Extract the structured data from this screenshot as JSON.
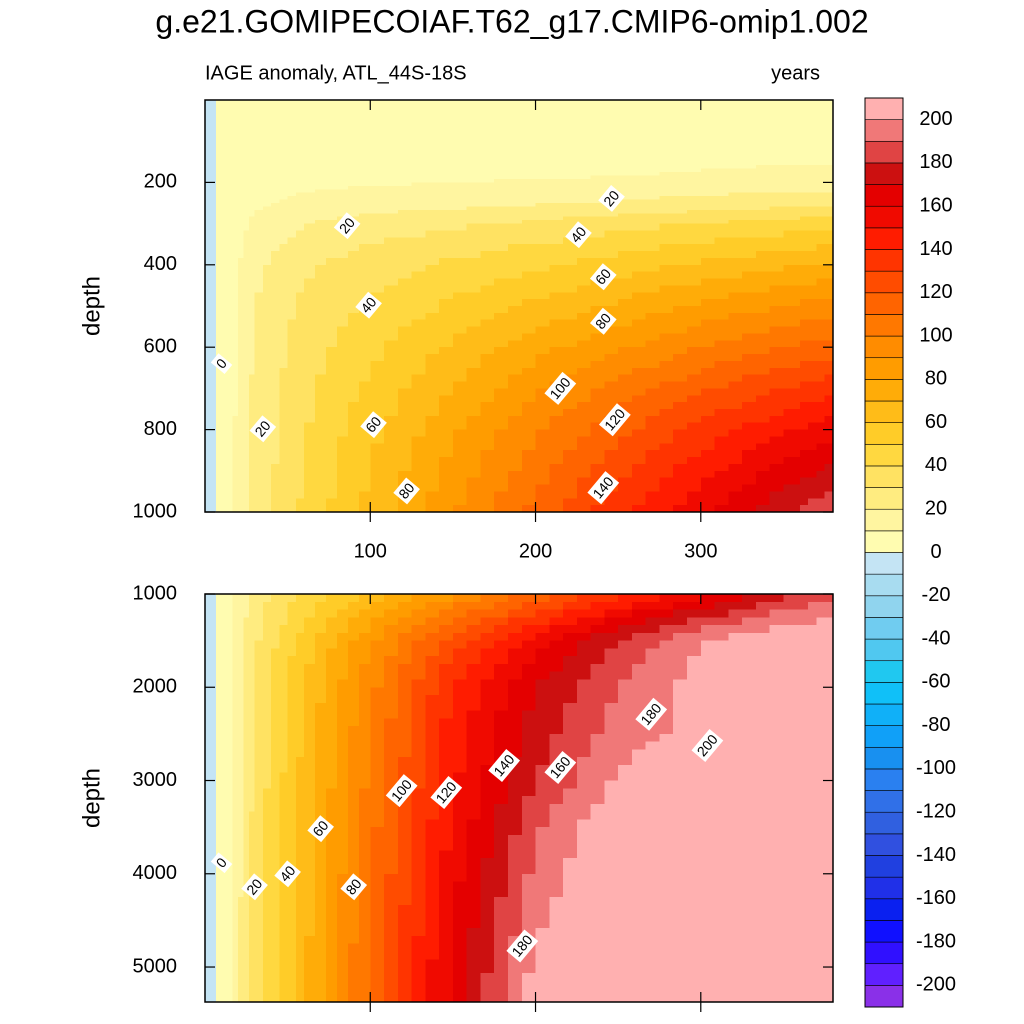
{
  "title": "g.e21.GOMIPECOIAF.T62_g17.CMIP6-omip1.002",
  "colorbar": {
    "levels": [
      -210,
      -200,
      -190,
      -180,
      -170,
      -160,
      -150,
      -140,
      -130,
      -120,
      -110,
      -100,
      -90,
      -80,
      -70,
      -60,
      -50,
      -40,
      -30,
      -20,
      -10,
      0,
      10,
      20,
      30,
      40,
      50,
      60,
      70,
      80,
      90,
      100,
      110,
      120,
      130,
      140,
      150,
      160,
      170,
      180,
      190,
      200,
      210
    ],
    "colors": [
      "#8a30e8",
      "#6020ff",
      "#3010ff",
      "#1010ff",
      "#0a20f0",
      "#2030e8",
      "#2040e0",
      "#3050e0",
      "#3060e0",
      "#3070e8",
      "#2a80f0",
      "#1890f0",
      "#10a0f8",
      "#10b0f8",
      "#10c0f8",
      "#20c8f0",
      "#50c8f0",
      "#70ccf0",
      "#90d4ee",
      "#a8dcf0",
      "#c4e4f4",
      "#fffcb0",
      "#fff5a0",
      "#ffec80",
      "#ffe262",
      "#ffd840",
      "#ffcc28",
      "#ffbc18",
      "#ffac08",
      "#ff9c00",
      "#ff8c00",
      "#ff7800",
      "#ff6400",
      "#ff4c00",
      "#ff3400",
      "#ff1c00",
      "#f00a00",
      "#e40000",
      "#cc1010",
      "#e04444",
      "#f07878",
      "#ffb0b0"
    ],
    "ticks": [
      -200,
      -180,
      -160,
      -140,
      -120,
      -100,
      -80,
      -60,
      -40,
      -20,
      0,
      20,
      40,
      60,
      80,
      100,
      120,
      140,
      160,
      180,
      200
    ]
  },
  "chart_data": [
    {
      "type": "contour",
      "subtitle": "IAGE anomaly, ATL_44S-18S",
      "units": "years",
      "y_label": "depth",
      "xlim": [
        0,
        380
      ],
      "ylim": [
        1000,
        0
      ],
      "xticks": [
        100,
        200,
        300
      ],
      "yticks": [
        200,
        400,
        600,
        800,
        1000
      ],
      "show_xtick_labels": true,
      "x": [
        0,
        10,
        30,
        60,
        100,
        150,
        200,
        250,
        300,
        350,
        380
      ],
      "y": [
        0,
        150,
        200,
        250,
        300,
        400,
        500,
        600,
        700,
        800,
        900,
        1000
      ],
      "z": [
        [
          -3,
          1,
          5,
          5,
          5,
          5,
          5,
          5,
          5,
          5,
          5
        ],
        [
          -3,
          1,
          5,
          5,
          5,
          5,
          5,
          5,
          8,
          9,
          9
        ],
        [
          -3,
          1,
          6,
          8,
          9,
          10,
          11,
          12,
          13,
          14,
          14
        ],
        [
          -3,
          1,
          8,
          12,
          15,
          17,
          19,
          21,
          24,
          26,
          27
        ],
        [
          -3,
          1,
          12,
          20,
          25,
          28,
          32,
          36,
          40,
          44,
          46
        ],
        [
          -3,
          1,
          17,
          28,
          35,
          42,
          48,
          55,
          62,
          68,
          72
        ],
        [
          -3,
          1,
          20,
          32,
          41,
          52,
          62,
          72,
          82,
          90,
          95
        ],
        [
          -3,
          1,
          21,
          35,
          47,
          62,
          76,
          88,
          100,
          110,
          115
        ],
        [
          -3,
          1,
          22,
          37,
          52,
          70,
          88,
          103,
          118,
          130,
          136
        ],
        [
          -3,
          1,
          23,
          39,
          57,
          78,
          98,
          117,
          133,
          148,
          156
        ],
        [
          -3,
          1,
          23,
          40,
          60,
          84,
          106,
          127,
          146,
          164,
          172
        ],
        [
          -3,
          1,
          24,
          42,
          63,
          89,
          113,
          137,
          158,
          178,
          188
        ]
      ],
      "contour_labels": [
        {
          "value": 0,
          "x": 10,
          "y": 640
        },
        {
          "value": 20,
          "x": 35,
          "y": 798
        },
        {
          "value": 20,
          "x": 86,
          "y": 305
        },
        {
          "value": 40,
          "x": 99,
          "y": 498
        },
        {
          "value": 60,
          "x": 102,
          "y": 788
        },
        {
          "value": 80,
          "x": 122,
          "y": 949
        },
        {
          "value": 20,
          "x": 246,
          "y": 239
        },
        {
          "value": 40,
          "x": 226,
          "y": 327
        },
        {
          "value": 60,
          "x": 241,
          "y": 429
        },
        {
          "value": 80,
          "x": 241,
          "y": 537
        },
        {
          "value": 100,
          "x": 215,
          "y": 700
        },
        {
          "value": 120,
          "x": 248,
          "y": 776
        },
        {
          "value": 140,
          "x": 241,
          "y": 941
        }
      ]
    },
    {
      "type": "contour",
      "y_label": "depth",
      "xlim": [
        0,
        380
      ],
      "ylim": [
        5375,
        1000
      ],
      "xticks": [
        100,
        200,
        300
      ],
      "yticks": [
        1000,
        2000,
        3000,
        4000,
        5000
      ],
      "show_xtick_labels": false,
      "x": [
        0,
        10,
        30,
        60,
        100,
        150,
        200,
        250,
        300,
        350,
        380
      ],
      "y": [
        1000,
        1500,
        2000,
        2500,
        3000,
        3500,
        4000,
        4500,
        5000,
        5375
      ],
      "z": [
        [
          -3,
          1,
          24,
          42,
          63,
          89,
          113,
          137,
          158,
          178,
          188
        ],
        [
          -3,
          1,
          28,
          55,
          88,
          125,
          155,
          180,
          200,
          210,
          212
        ],
        [
          -3,
          1,
          30,
          60,
          97,
          140,
          170,
          190,
          205,
          215,
          218
        ],
        [
          -3,
          1,
          32,
          62,
          100,
          145,
          175,
          195,
          203,
          212,
          215
        ],
        [
          -3,
          1,
          32,
          63,
          103,
          148,
          180,
          202,
          212,
          218,
          220
        ],
        [
          -3,
          1,
          33,
          64,
          106,
          152,
          188,
          210,
          218,
          222,
          224
        ],
        [
          -3,
          1,
          33,
          65,
          108,
          156,
          193,
          213,
          220,
          224,
          226
        ],
        [
          -3,
          1,
          34,
          66,
          110,
          160,
          198,
          215,
          222,
          226,
          228
        ],
        [
          -3,
          1,
          34,
          67,
          112,
          163,
          203,
          217,
          224,
          228,
          230
        ],
        [
          -3,
          1,
          34,
          67,
          113,
          164,
          205,
          218,
          225,
          229,
          231
        ]
      ],
      "contour_labels": [
        {
          "value": 0,
          "x": 10,
          "y": 3882
        },
        {
          "value": 20,
          "x": 30,
          "y": 4140
        },
        {
          "value": 40,
          "x": 50,
          "y": 4000
        },
        {
          "value": 60,
          "x": 70,
          "y": 3516
        },
        {
          "value": 80,
          "x": 90,
          "y": 4140
        },
        {
          "value": 100,
          "x": 119,
          "y": 3108
        },
        {
          "value": 120,
          "x": 146,
          "y": 3129
        },
        {
          "value": 140,
          "x": 181,
          "y": 2839
        },
        {
          "value": 160,
          "x": 215,
          "y": 2860
        },
        {
          "value": 180,
          "x": 270,
          "y": 2290
        },
        {
          "value": 200,
          "x": 304,
          "y": 2624
        },
        {
          "value": 180,
          "x": 192,
          "y": 4774
        }
      ]
    }
  ]
}
